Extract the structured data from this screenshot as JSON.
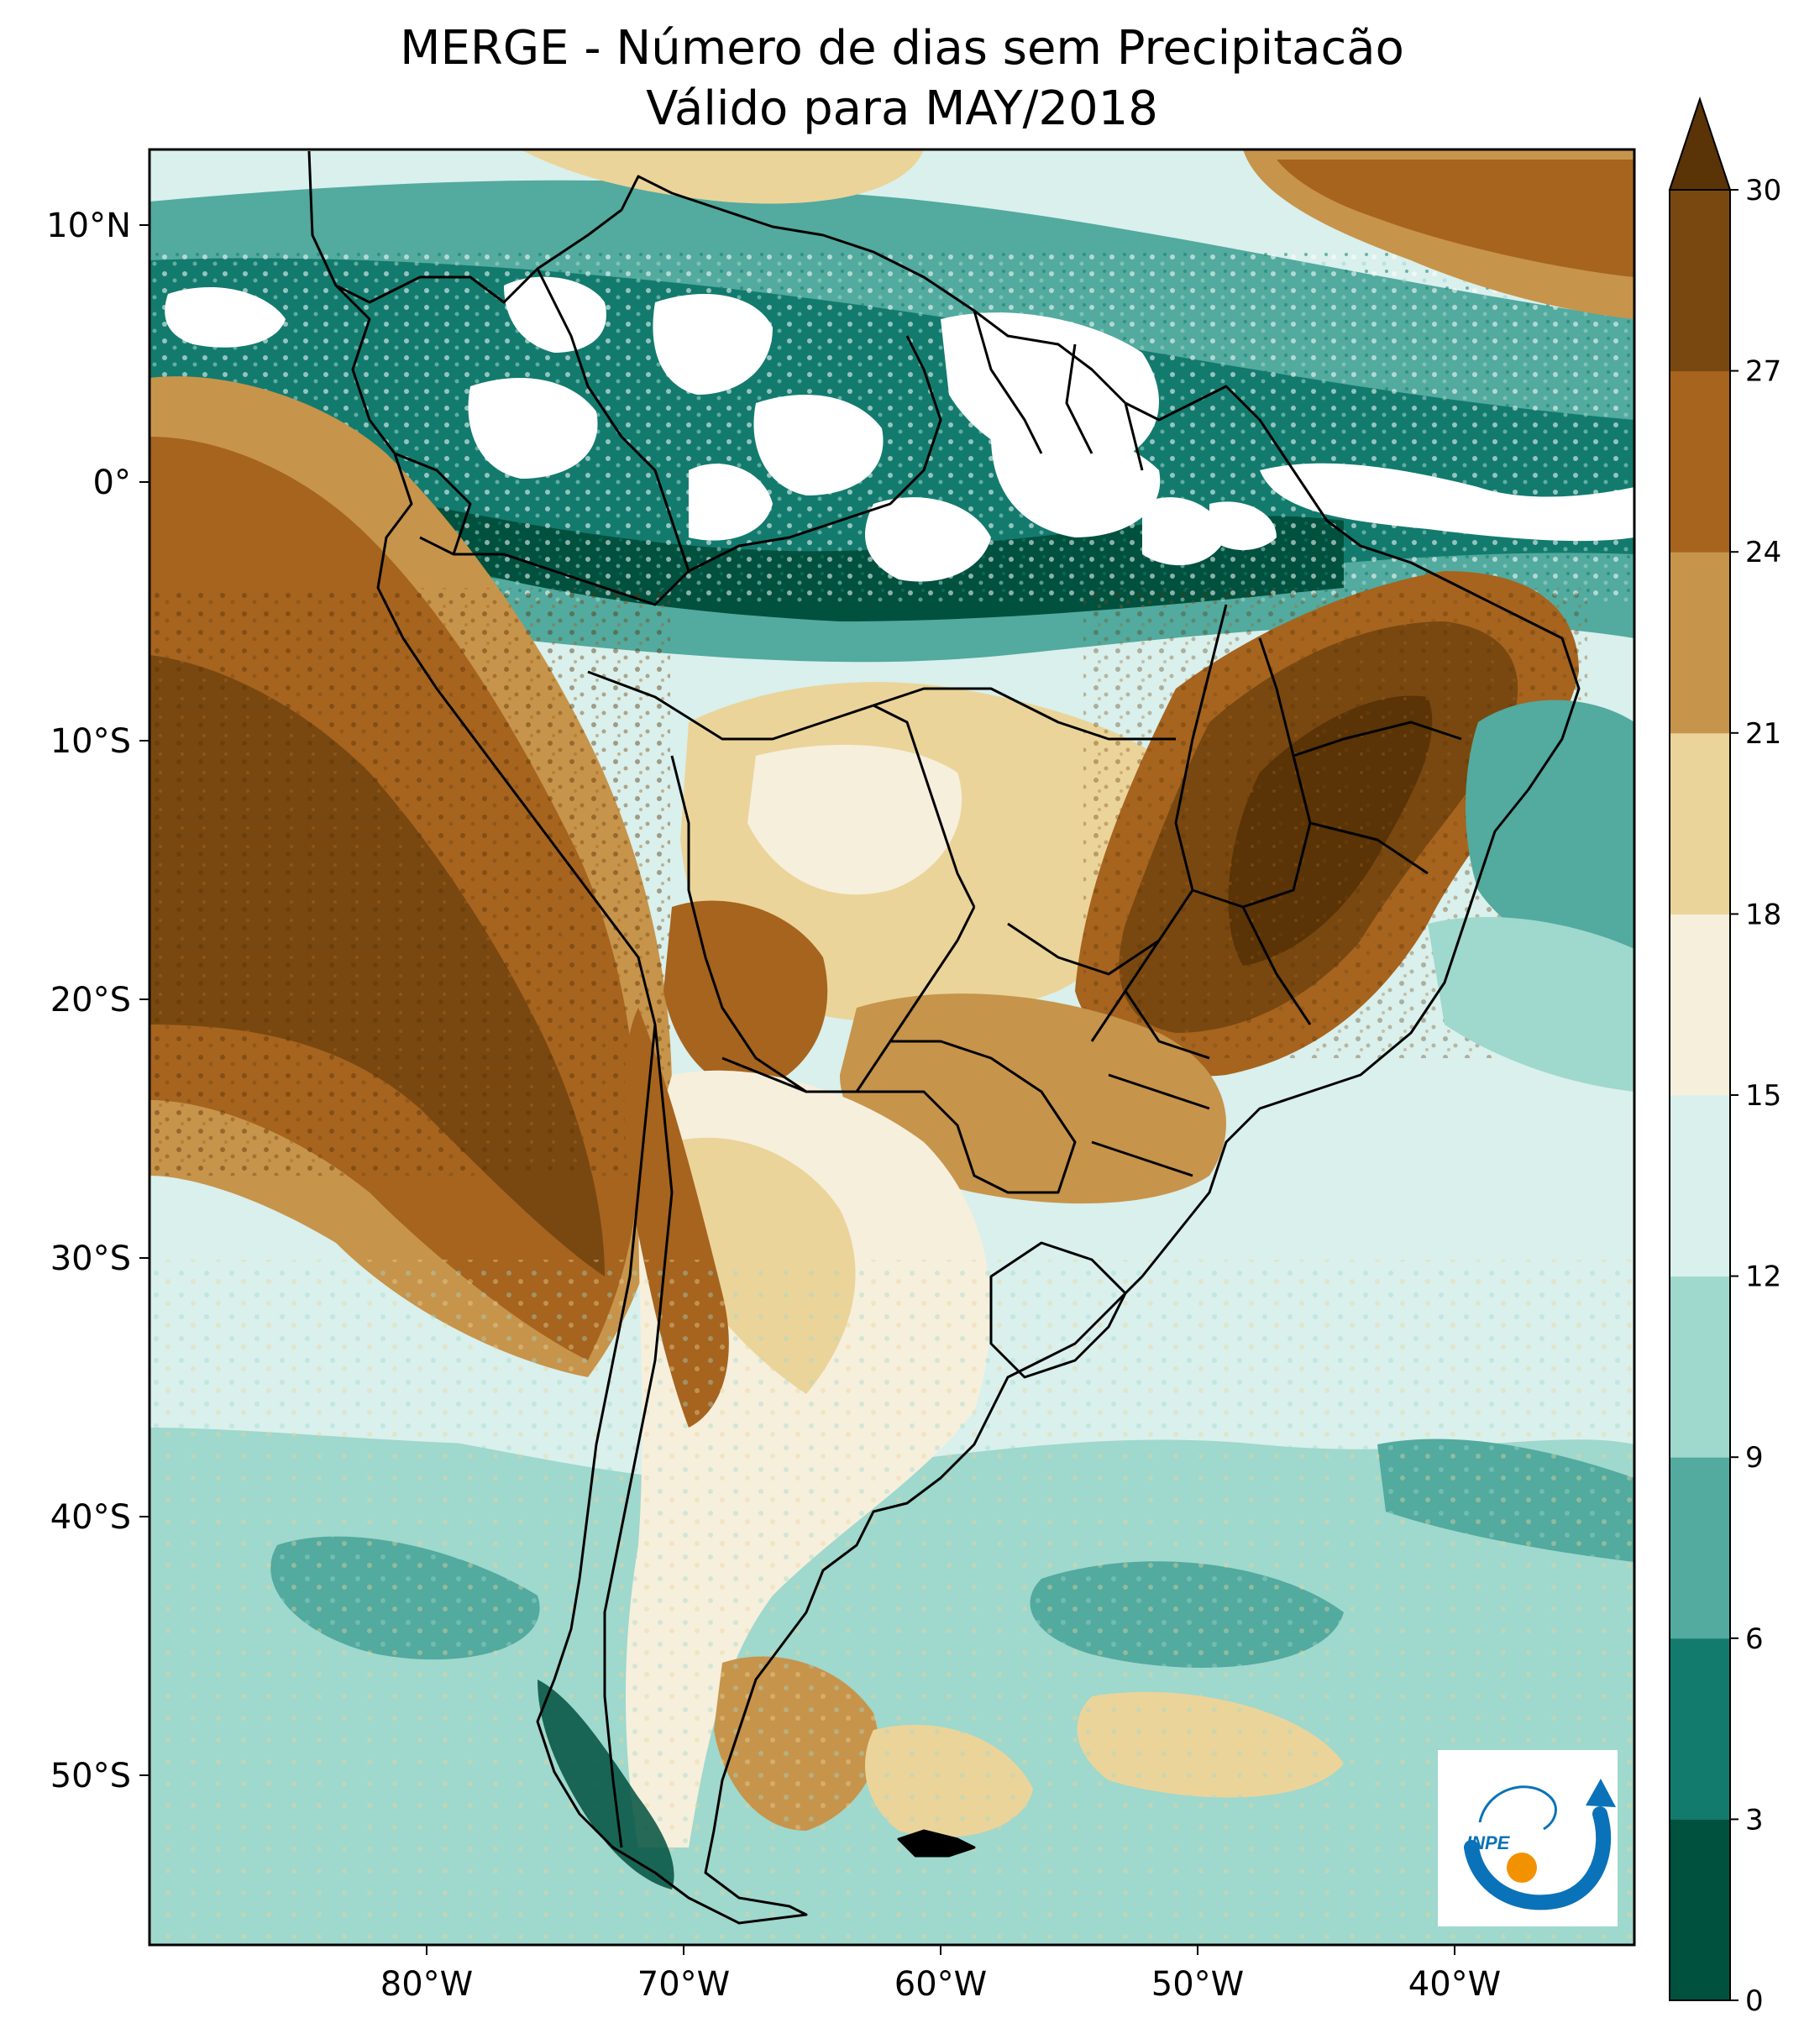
{
  "title": {
    "line1": "MERGE - Número de dias sem Precipitacão",
    "line2": "Válido para MAY/2018"
  },
  "map": {
    "lat_ticks": [
      "10°N",
      "0°",
      "10°S",
      "20°S",
      "30°S",
      "40°S",
      "50°S"
    ],
    "lon_ticks": [
      "80°W",
      "70°W",
      "60°W",
      "50°W",
      "40°W"
    ]
  },
  "colorbar": {
    "ticks": [
      "0",
      "3",
      "6",
      "9",
      "12",
      "15",
      "18",
      "21",
      "24",
      "27",
      "30"
    ],
    "colors": [
      "#01513f",
      "#137b6e",
      "#53aa9f",
      "#9fd8cd",
      "#d9f0ec",
      "#f6efdc",
      "#ebd49a",
      "#c7944b",
      "#a6641f",
      "#794810",
      "#5a3306"
    ],
    "extend": "max"
  },
  "logo": {
    "text": "INPE",
    "accent_blue": "#0a72b8",
    "accent_orange": "#f39200"
  }
}
